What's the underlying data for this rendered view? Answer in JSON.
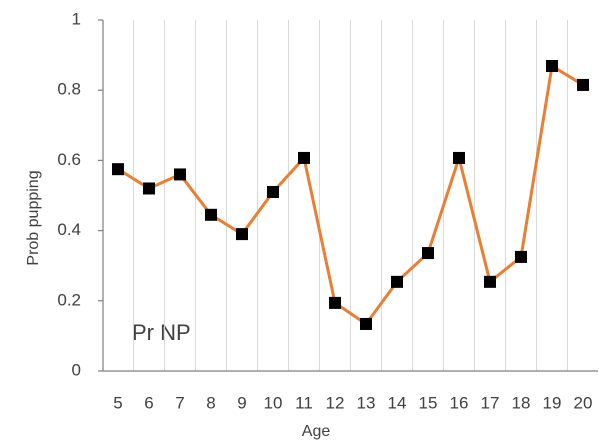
{
  "chart_data": {
    "type": "line",
    "x_label": "Age",
    "y_label": "Prob pupping",
    "annotation": "Pr NP",
    "categories": [
      "5",
      "6",
      "7",
      "8",
      "9",
      "10",
      "11",
      "12",
      "13",
      "14",
      "15",
      "16",
      "17",
      "18",
      "19",
      "20"
    ],
    "values": [
      0.575,
      0.52,
      0.56,
      0.445,
      0.39,
      0.51,
      0.607,
      0.194,
      0.134,
      0.254,
      0.336,
      0.607,
      0.254,
      0.325,
      0.869,
      0.815
    ],
    "color": "#ed7d31",
    "marker_color": "#000000",
    "ylim": [
      0,
      1
    ],
    "yticks": [
      0,
      0.2,
      0.4,
      0.6,
      0.8,
      1
    ],
    "grid": "x"
  }
}
